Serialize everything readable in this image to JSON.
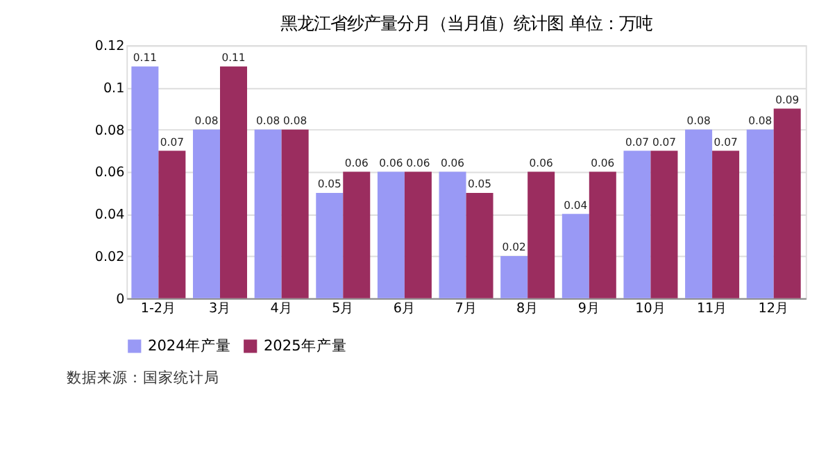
{
  "chart_data": {
    "type": "bar",
    "title": "黑龙江省纱产量分月（当月值）统计图 单位：万吨",
    "categories": [
      "1-2月",
      "3月",
      "4月",
      "5月",
      "6月",
      "7月",
      "8月",
      "9月",
      "10月",
      "11月",
      "12月"
    ],
    "series": [
      {
        "name": "2024年产量",
        "color": "#9999f5",
        "values": [
          0.11,
          0.08,
          0.08,
          0.05,
          0.06,
          0.06,
          0.02,
          0.04,
          0.07,
          0.08,
          0.08
        ]
      },
      {
        "name": "2025年产量",
        "color": "#9b2d5f",
        "values": [
          0.07,
          0.11,
          0.08,
          0.06,
          0.06,
          0.05,
          0.06,
          0.06,
          0.07,
          0.07,
          0.09
        ]
      }
    ],
    "ylim": [
      0,
      0.12
    ],
    "yticks": [
      0,
      0.02,
      0.04,
      0.06,
      0.08,
      0.1,
      0.12
    ],
    "grid": "y",
    "legend": "bottom",
    "data_labels": true,
    "annotations": [
      "数据来源：国家统计局"
    ]
  }
}
